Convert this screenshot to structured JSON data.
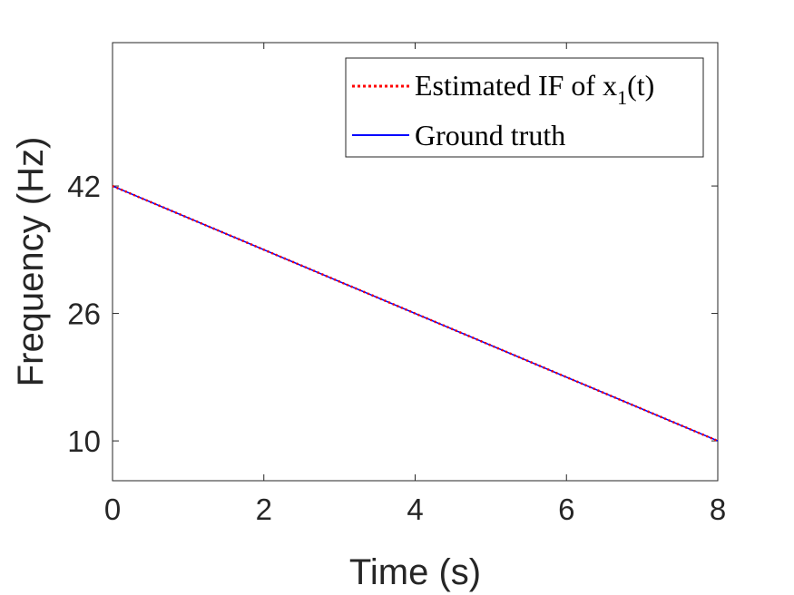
{
  "chart_data": {
    "type": "line",
    "title": "",
    "xlabel": "Time (s)",
    "ylabel": "Frequency (Hz)",
    "xlim": [
      0,
      8
    ],
    "ylim": [
      5,
      60
    ],
    "xticks": [
      0,
      2,
      4,
      6,
      8
    ],
    "yticks": [
      10,
      26,
      42
    ],
    "grid": false,
    "legend_position": "top-right",
    "legend": {
      "estimated_prefix": "Estimated IF of x",
      "estimated_sub": "1",
      "estimated_suffix": "(t)",
      "ground_truth": "Ground truth"
    },
    "series": [
      {
        "name": "Estimated IF of x1(t)",
        "style": "dotted",
        "color": "#ff0000",
        "x": [
          0,
          8
        ],
        "y": [
          42,
          10
        ]
      },
      {
        "name": "Ground truth",
        "style": "solid",
        "color": "#0000ff",
        "x": [
          0,
          8
        ],
        "y": [
          42,
          10
        ]
      }
    ]
  }
}
